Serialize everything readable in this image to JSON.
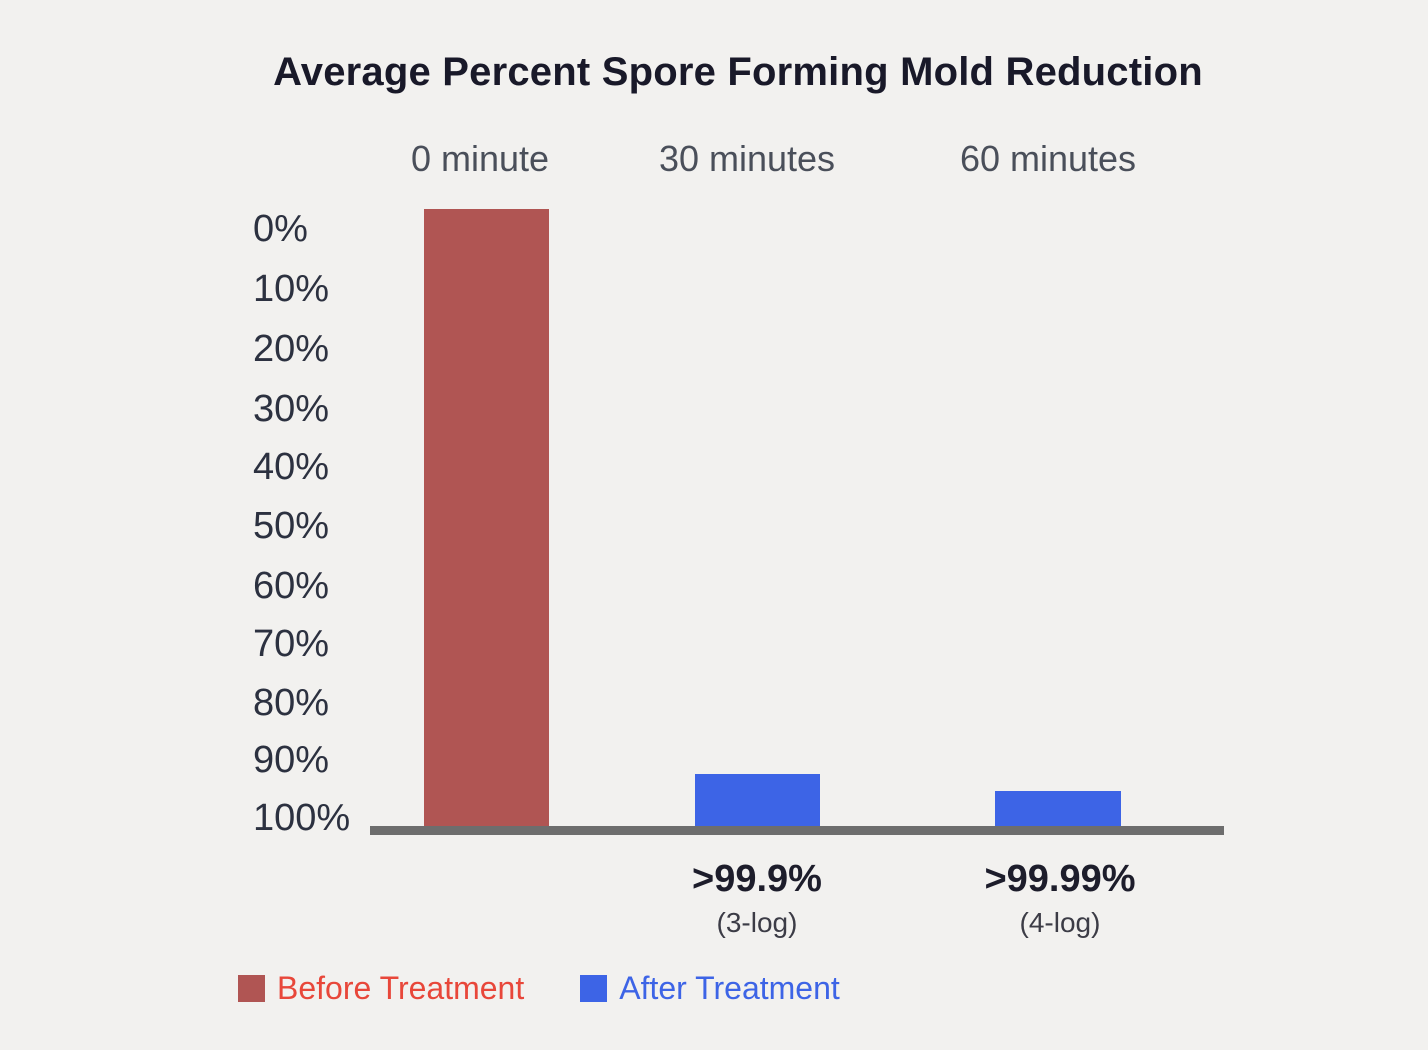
{
  "chart_data": {
    "type": "bar",
    "title": "Average Percent Spore Forming Mold Reduction",
    "categories": [
      "0 minute",
      "30 minutes",
      "60 minutes"
    ],
    "y_axis": {
      "tick_labels": [
        "0%",
        "10%",
        "20%",
        "30%",
        "40%",
        "50%",
        "60%",
        "70%",
        "80%",
        "90%",
        "100%"
      ],
      "direction": "inverted, 0% at top and 100% at baseline",
      "range_percent": [
        0,
        100
      ],
      "grid": "off"
    },
    "series": [
      {
        "name": "Before Treatment",
        "color": "#b05553",
        "data": [
          {
            "category": "0 minute",
            "bar_span_percent": 105.5
          }
        ]
      },
      {
        "name": "After Treatment",
        "color": "#3d64e6",
        "data": [
          {
            "category": "30 minutes",
            "value": ">99.9%",
            "log_label": "(3-log)",
            "bar_span_percent": 9.5
          },
          {
            "category": "60 minutes",
            "value": ">99.99%",
            "log_label": "(4-log)",
            "bar_span_percent": 6.6
          }
        ]
      }
    ],
    "legend": {
      "position": "bottom-left",
      "items": [
        {
          "label": "Before Treatment",
          "swatch_color": "#b05553",
          "text_color": "#e8473a"
        },
        {
          "label": "After Treatment",
          "swatch_color": "#3d64e6",
          "text_color": "#3d64e6"
        }
      ]
    }
  },
  "colors": {
    "background": "#f2f1ef",
    "title_text": "#191929",
    "column_header_text": "#4a4f5a",
    "axis_tick_text": "#2c3140",
    "baseline": "#6d6d6d",
    "annotation_value_text": "#1d1d2b",
    "annotation_log_text": "#3c3c46"
  }
}
